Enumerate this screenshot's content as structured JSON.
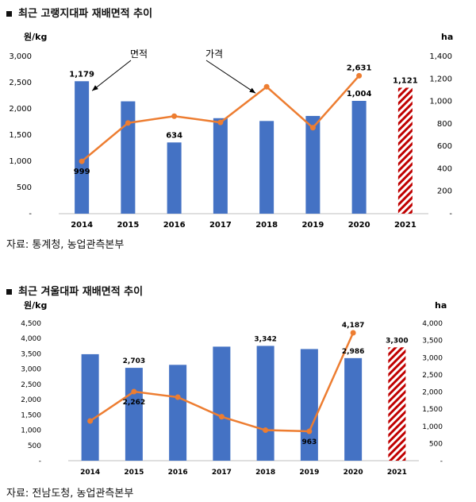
{
  "colors": {
    "bar": "#4472C4",
    "line": "#ED7D31",
    "forecast": "#C00000"
  },
  "chart1": {
    "title": "최근 고랭지대파 재배면적 추이",
    "source": "자료: 통계청, 농업관측본부"
  },
  "chart2": {
    "title": "최근 겨울대파 재배면적 추이",
    "source": "자료: 전남도청, 농업관측본부"
  },
  "chart_data": [
    {
      "type": "bar",
      "title": "최근 고랭지대파 재배면적 추이",
      "categories": [
        "2014",
        "2015",
        "2016",
        "2017",
        "2018",
        "2019",
        "2020",
        "2021"
      ],
      "y_left_label": "원/kg",
      "y_right_label": "ha",
      "y_left_ticks": [
        "-",
        "500",
        "1,000",
        "1,500",
        "2,000",
        "2,500",
        "3,000"
      ],
      "y_right_ticks": [
        "-",
        "200",
        "400",
        "600",
        "800",
        "1,000",
        "1,200",
        "1,400"
      ],
      "ylim_left": [
        0,
        3000
      ],
      "ylim_right": [
        0,
        1400
      ],
      "series": [
        {
          "name": "면적",
          "type": "bar",
          "axis": "right",
          "values": [
            1179,
            1000,
            634,
            850,
            825,
            870,
            1004,
            1121
          ],
          "forecast_index": 7
        },
        {
          "name": "가격",
          "type": "line",
          "axis": "left",
          "values": [
            999,
            1730,
            1860,
            1740,
            2420,
            1640,
            2631,
            null
          ]
        }
      ],
      "data_labels": [
        {
          "text": "1,179",
          "series": 0,
          "index": 0
        },
        {
          "text": "634",
          "series": 0,
          "index": 2
        },
        {
          "text": "1,004",
          "series": 0,
          "index": 6
        },
        {
          "text": "1,121",
          "series": 0,
          "index": 7
        },
        {
          "text": "999",
          "series": 1,
          "index": 0
        },
        {
          "text": "2,631",
          "series": 1,
          "index": 6
        }
      ],
      "annotations": [
        {
          "text": "면적",
          "target_series": 0,
          "target_index": 0
        },
        {
          "text": "가격",
          "target_series": 1,
          "target_index": 4
        }
      ],
      "grid": false
    },
    {
      "type": "bar",
      "title": "최근 겨울대파 재배면적 추이",
      "categories": [
        "2014",
        "2015",
        "2016",
        "2017",
        "2018",
        "2019",
        "2020",
        "2021"
      ],
      "y_left_label": "원/kg",
      "y_right_label": "ha",
      "y_left_ticks": [
        "-",
        "500",
        "1,000",
        "1,500",
        "2,000",
        "2,500",
        "3,000",
        "3,500",
        "4,000",
        "4,500"
      ],
      "y_right_ticks": [
        "-",
        "500",
        "1,000",
        "1,500",
        "2,000",
        "2,500",
        "3,000",
        "3,500",
        "4,000"
      ],
      "ylim_left": [
        0,
        4500
      ],
      "ylim_right": [
        0,
        4000
      ],
      "series": [
        {
          "name": "면적",
          "type": "bar",
          "axis": "right",
          "values": [
            3100,
            2703,
            2790,
            3320,
            3342,
            3250,
            2986,
            3300
          ],
          "forecast_index": 7
        },
        {
          "name": "가격",
          "type": "line",
          "axis": "left",
          "values": [
            1300,
            2262,
            2080,
            1440,
            1000,
            963,
            4187,
            null
          ]
        }
      ],
      "data_labels": [
        {
          "text": "2,703",
          "series": 0,
          "index": 1
        },
        {
          "text": "3,342",
          "series": 0,
          "index": 4
        },
        {
          "text": "2,986",
          "series": 0,
          "index": 6
        },
        {
          "text": "3,300",
          "series": 0,
          "index": 7
        },
        {
          "text": "2,262",
          "series": 1,
          "index": 1
        },
        {
          "text": "963",
          "series": 1,
          "index": 5
        },
        {
          "text": "4,187",
          "series": 1,
          "index": 6
        }
      ],
      "grid": false
    }
  ]
}
